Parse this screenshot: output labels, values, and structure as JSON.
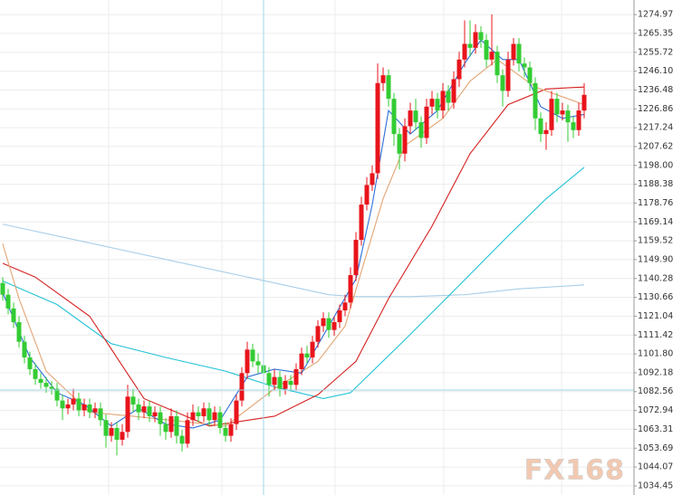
{
  "chart_data": {
    "type": "candlestick",
    "up_color": "#e8141b",
    "down_color": "#33cc33",
    "ylim": [
      1029.8,
      1282.4
    ],
    "yticks": [
      1274.97,
      1265.35,
      1255.72,
      {
        "value": 1246.1,
        "label": "1246.10"
      },
      1236.48,
      1226.86,
      1217.24,
      1207.62,
      {
        "value": 1198,
        "label": "1198.00"
      },
      1188.38,
      1178.76,
      1169.14,
      1159.52,
      {
        "value": 1149.9,
        "label": "1149.90"
      },
      1140.28,
      1130.66,
      1121.04,
      1111.42,
      {
        "value": 1101.8,
        "label": "1101.80"
      },
      1092.18,
      1082.56,
      1072.94,
      1063.31,
      1053.69,
      1044.07,
      1034.45
    ],
    "grid": true,
    "open": [
      1138,
      1132,
      1125,
      1118,
      1108,
      1100,
      1094,
      1089,
      1087,
      1085,
      1084,
      1078,
      1074,
      1076,
      1079,
      1073,
      1076,
      1072,
      1074,
      1068,
      1060,
      1064,
      1058,
      1062,
      1080,
      1076,
      1072,
      1075,
      1070,
      1072,
      1066,
      1062,
      1070,
      1060,
      1056,
      1068,
      1072,
      1070,
      1074,
      1068,
      1072,
      1064,
      1060,
      1066,
      1078,
      1092,
      1104,
      1098,
      1096,
      1092,
      1086,
      1090,
      1084,
      1088,
      1086,
      1094,
      1102,
      1100,
      1108,
      1116,
      1120,
      1114,
      1118,
      1124,
      1128,
      1142,
      1160,
      1178,
      1188,
      1194,
      1240,
      1244,
      1232,
      1214,
      1204,
      1218,
      1226,
      1220,
      1212,
      1228,
      1232,
      1226,
      1236,
      1230,
      1242,
      1252,
      1260,
      1258,
      1266,
      1262,
      1252,
      1256,
      1244,
      1236,
      1252,
      1260,
      1250,
      1248,
      1240,
      1222,
      1214,
      1216,
      1232,
      1224,
      1226,
      1220,
      1216,
      1226
    ],
    "high": [
      1141,
      1135,
      1128,
      1121,
      1111,
      1103,
      1097,
      1092,
      1090,
      1088,
      1087,
      1081,
      1079,
      1084,
      1082,
      1079,
      1079,
      1077,
      1077,
      1071,
      1067,
      1067,
      1066,
      1086,
      1084,
      1079,
      1078,
      1078,
      1075,
      1075,
      1069,
      1074,
      1073,
      1063,
      1072,
      1076,
      1075,
      1077,
      1077,
      1075,
      1075,
      1067,
      1069,
      1081,
      1095,
      1108,
      1107,
      1102,
      1099,
      1095,
      1094,
      1093,
      1091,
      1091,
      1097,
      1105,
      1106,
      1111,
      1119,
      1123,
      1123,
      1121,
      1127,
      1132,
      1146,
      1164,
      1182,
      1192,
      1198,
      1250,
      1248,
      1247,
      1235,
      1217,
      1222,
      1230,
      1232,
      1223,
      1232,
      1236,
      1235,
      1240,
      1239,
      1246,
      1256,
      1272,
      1272,
      1270,
      1269,
      1265,
      1275,
      1259,
      1247,
      1256,
      1263,
      1263,
      1253,
      1251,
      1243,
      1225,
      1220,
      1236,
      1235,
      1230,
      1229,
      1223,
      1230,
      1240
    ],
    "low": [
      1129,
      1122,
      1115,
      1105,
      1097,
      1091,
      1086,
      1084,
      1082,
      1081,
      1075,
      1068,
      1071,
      1073,
      1070,
      1070,
      1069,
      1069,
      1065,
      1054,
      1057,
      1050,
      1055,
      1059,
      1072,
      1068,
      1069,
      1067,
      1067,
      1060,
      1058,
      1059,
      1056,
      1052,
      1054,
      1065,
      1067,
      1067,
      1065,
      1065,
      1061,
      1057,
      1057,
      1063,
      1075,
      1089,
      1095,
      1092,
      1088,
      1080,
      1083,
      1080,
      1081,
      1083,
      1083,
      1091,
      1097,
      1097,
      1105,
      1113,
      1110,
      1111,
      1115,
      1121,
      1125,
      1139,
      1157,
      1175,
      1185,
      1191,
      1236,
      1228,
      1208,
      1196,
      1200,
      1214,
      1216,
      1207,
      1209,
      1224,
      1222,
      1222,
      1226,
      1227,
      1238,
      1248,
      1254,
      1255,
      1258,
      1248,
      1249,
      1240,
      1228,
      1233,
      1249,
      1246,
      1243,
      1236,
      1216,
      1210,
      1206,
      1213,
      1220,
      1221,
      1210,
      1212,
      1213,
      1222
    ],
    "close": [
      1132,
      1125,
      1118,
      1108,
      1100,
      1094,
      1089,
      1087,
      1085,
      1084,
      1078,
      1074,
      1076,
      1079,
      1073,
      1076,
      1072,
      1074,
      1068,
      1060,
      1064,
      1058,
      1062,
      1080,
      1076,
      1072,
      1075,
      1070,
      1072,
      1066,
      1062,
      1070,
      1060,
      1056,
      1068,
      1072,
      1070,
      1074,
      1068,
      1072,
      1064,
      1060,
      1066,
      1078,
      1092,
      1104,
      1098,
      1096,
      1092,
      1086,
      1090,
      1084,
      1088,
      1086,
      1094,
      1102,
      1100,
      1108,
      1116,
      1120,
      1114,
      1118,
      1124,
      1128,
      1142,
      1160,
      1178,
      1188,
      1194,
      1240,
      1244,
      1232,
      1214,
      1204,
      1218,
      1226,
      1220,
      1212,
      1228,
      1232,
      1226,
      1236,
      1230,
      1242,
      1252,
      1260,
      1258,
      1266,
      1262,
      1252,
      1256,
      1244,
      1236,
      1252,
      1260,
      1250,
      1248,
      1240,
      1222,
      1214,
      1216,
      1232,
      1224,
      1226,
      1220,
      1216,
      1226,
      1234
    ],
    "lines": [
      {
        "color": "#a9cfe9",
        "x": [
          0,
          10,
          20,
          30,
          40,
          50,
          60,
          65,
          75,
          85,
          95,
          107
        ],
        "values": [
          1168,
          1162,
          1156,
          1150,
          1144,
          1138,
          1132,
          1131,
          1131,
          1132,
          1135,
          1137
        ]
      },
      {
        "color": "#22c3d6",
        "x": [
          0,
          10,
          20,
          30,
          41,
          50,
          59,
          64,
          74,
          83,
          93,
          100,
          107
        ],
        "values": [
          1139,
          1127,
          1107,
          1100,
          1093,
          1085,
          1079,
          1082,
          1109,
          1134,
          1162,
          1181,
          1197
        ]
      },
      {
        "color": "#d62020",
        "x": [
          0,
          6,
          16,
          26,
          38,
          50,
          58,
          65,
          71,
          79,
          86,
          93,
          100,
          107
        ],
        "values": [
          1148,
          1141,
          1121,
          1079,
          1065,
          1070,
          1081,
          1098,
          1130,
          1167,
          1204,
          1229,
          1237,
          1238
        ]
      },
      {
        "color": "#e3a574",
        "x": [
          0,
          3,
          8,
          16,
          24,
          41,
          50,
          58,
          63,
          70,
          74,
          81,
          86,
          91,
          98,
          107
        ],
        "values": [
          1158,
          1130,
          1093,
          1072,
          1070,
          1065,
          1084,
          1098,
          1116,
          1181,
          1208,
          1222,
          1241,
          1252,
          1238,
          1229
        ]
      },
      {
        "color": "#2b6fd8",
        "x": [
          0,
          5,
          10,
          15,
          20,
          25,
          30,
          35,
          40,
          45,
          50,
          55,
          60,
          65,
          68,
          71,
          75,
          80,
          85,
          88,
          92,
          95,
          99,
          103,
          107
        ],
        "values": [
          1133,
          1100,
          1082,
          1076,
          1065,
          1074,
          1066,
          1064,
          1068,
          1090,
          1094,
          1092,
          1116,
          1140,
          1178,
          1226,
          1214,
          1226,
          1250,
          1262,
          1252,
          1252,
          1228,
          1222,
          1224
        ]
      }
    ],
    "watermark": "FX168"
  }
}
